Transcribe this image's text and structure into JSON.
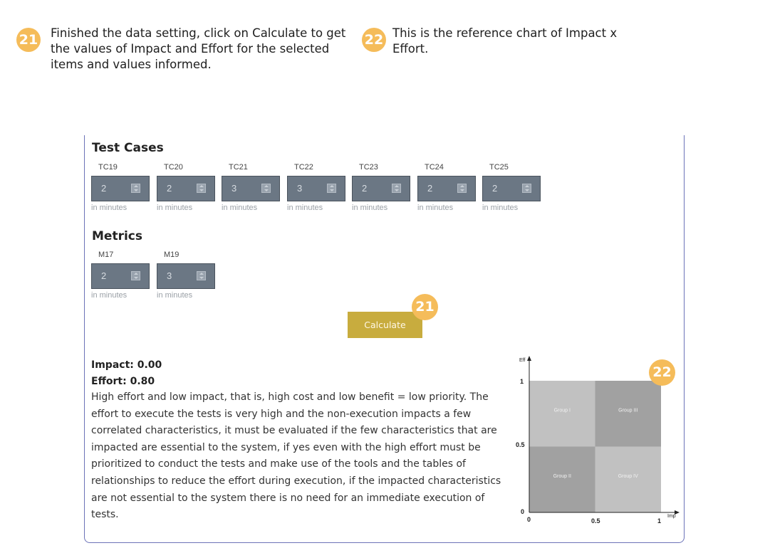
{
  "instructions": [
    {
      "number": "21",
      "text": "Finished the data setting, click on Calculate to get the values of Impact and Effort for the selected items and values informed."
    },
    {
      "number": "22",
      "text": "This is the reference chart of Impact x Effort."
    }
  ],
  "test_cases": {
    "title": "Test Cases",
    "items": [
      {
        "label": "TC19",
        "value": "2",
        "hint": "in minutes"
      },
      {
        "label": "TC20",
        "value": "2",
        "hint": "in minutes"
      },
      {
        "label": "TC21",
        "value": "3",
        "hint": "in minutes"
      },
      {
        "label": "TC22",
        "value": "3",
        "hint": "in minutes"
      },
      {
        "label": "TC23",
        "value": "2",
        "hint": "in minutes"
      },
      {
        "label": "TC24",
        "value": "2",
        "hint": "in minutes"
      },
      {
        "label": "TC25",
        "value": "2",
        "hint": "in minutes"
      }
    ]
  },
  "metrics": {
    "title": "Metrics",
    "items": [
      {
        "label": "M17",
        "value": "2",
        "hint": "in minutes"
      },
      {
        "label": "M19",
        "value": "3",
        "hint": "in minutes"
      }
    ]
  },
  "calculate": {
    "label": "Calculate",
    "badge": "21"
  },
  "results": {
    "impact": "Impact: 0.00",
    "effort": "Effort: 0.80",
    "description": "High effort and low impact, that is, high cost and low benefit = low priority. The effort to execute the tests is very high and the non-execution impacts a few correlated characteristics, it must be evaluated if the few characteristics that are impacted are essential to the system, if yes even with the high effort must be prioritized to conduct the tests and make use of the tools and the tables of relationships to reduce the effort during execution, if the impacted characteristics are not essential to the system there is no need for an immediate execution of tests."
  },
  "chart_data": {
    "type": "heatmap",
    "badge": "22",
    "xlabel": "Imp",
    "ylabel": "Eff",
    "xlim": [
      0,
      1
    ],
    "ylim": [
      0,
      1
    ],
    "x_ticks": [
      "0",
      "0.5",
      "1"
    ],
    "y_ticks": [
      "0",
      "0.5",
      "1"
    ],
    "quadrants": [
      {
        "name": "Group I",
        "x": [
          0,
          0.5
        ],
        "y": [
          0.5,
          1
        ],
        "color": "#c1c1c1"
      },
      {
        "name": "Group III",
        "x": [
          0.5,
          1
        ],
        "y": [
          0.5,
          1
        ],
        "color": "#a1a1a1"
      },
      {
        "name": "Group II",
        "x": [
          0,
          0.5
        ],
        "y": [
          0,
          0.5
        ],
        "color": "#a1a1a1"
      },
      {
        "name": "Group IV",
        "x": [
          0.5,
          1
        ],
        "y": [
          0,
          0.5
        ],
        "color": "#c1c1c1"
      }
    ]
  },
  "colors": {
    "badge": "#f5bc5a",
    "panel_border": "#6c72b8",
    "input_bg": "#6b7784",
    "button_bg": "#c8ac3e"
  }
}
